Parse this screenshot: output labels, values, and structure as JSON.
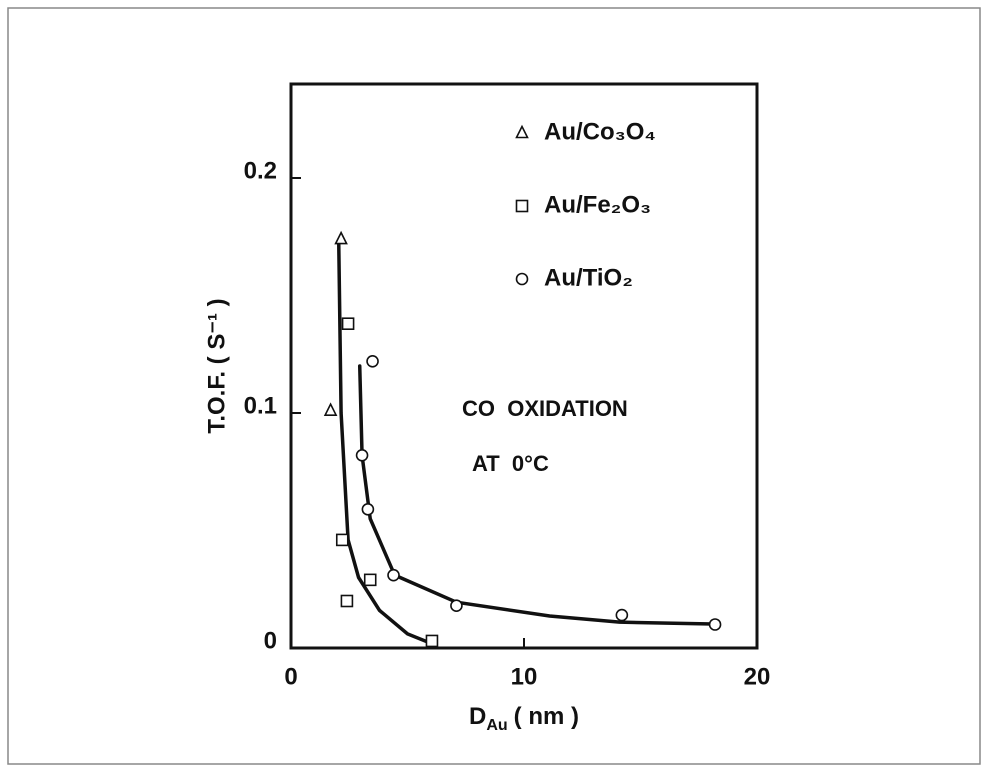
{
  "chart_data": {
    "type": "scatter",
    "x_label": {
      "symbol": "D",
      "subscript": "Au",
      "unit": "( nm )"
    },
    "y_label": "T.O.F. ( S⁻¹ )",
    "annotations": [
      "CO  OXIDATION",
      "AT  0°C"
    ],
    "xlim": [
      0,
      20
    ],
    "xticks": [
      0,
      10,
      20
    ],
    "ylim": [
      0,
      0.24
    ],
    "yticks": [
      0,
      0.1,
      0.2
    ],
    "legend": "top-right",
    "series": [
      {
        "name": "Au/Co₃O₄",
        "marker": "triangle",
        "color": "#111111",
        "x": [
          2.15,
          1.7
        ],
        "values": [
          0.174,
          0.101
        ]
      },
      {
        "name": "Au/Fe₂O₃",
        "marker": "square",
        "color": "#111111",
        "x": [
          2.45,
          2.2,
          2.4,
          3.4,
          6.05
        ],
        "values": [
          0.138,
          0.046,
          0.02,
          0.029,
          0.003
        ]
      },
      {
        "name": "Au/TiO₂",
        "marker": "circle",
        "color": "#111111",
        "x": [
          3.5,
          3.05,
          3.3,
          4.4,
          7.1,
          14.2,
          18.2
        ],
        "values": [
          0.122,
          0.082,
          0.059,
          0.031,
          0.018,
          0.014,
          0.01
        ]
      }
    ],
    "curves": [
      {
        "color": "#111111",
        "x": [
          2.05,
          2.15,
          2.45,
          2.9,
          3.8,
          5.0,
          6.0
        ],
        "values": [
          0.172,
          0.1,
          0.046,
          0.03,
          0.016,
          0.006,
          0.002
        ]
      },
      {
        "color": "#111111",
        "x": [
          2.95,
          3.05,
          3.4,
          4.45,
          7.1,
          11.1,
          14.1,
          18.1
        ],
        "values": [
          0.12,
          0.082,
          0.055,
          0.031,
          0.0195,
          0.0136,
          0.011,
          0.0102
        ]
      }
    ]
  }
}
